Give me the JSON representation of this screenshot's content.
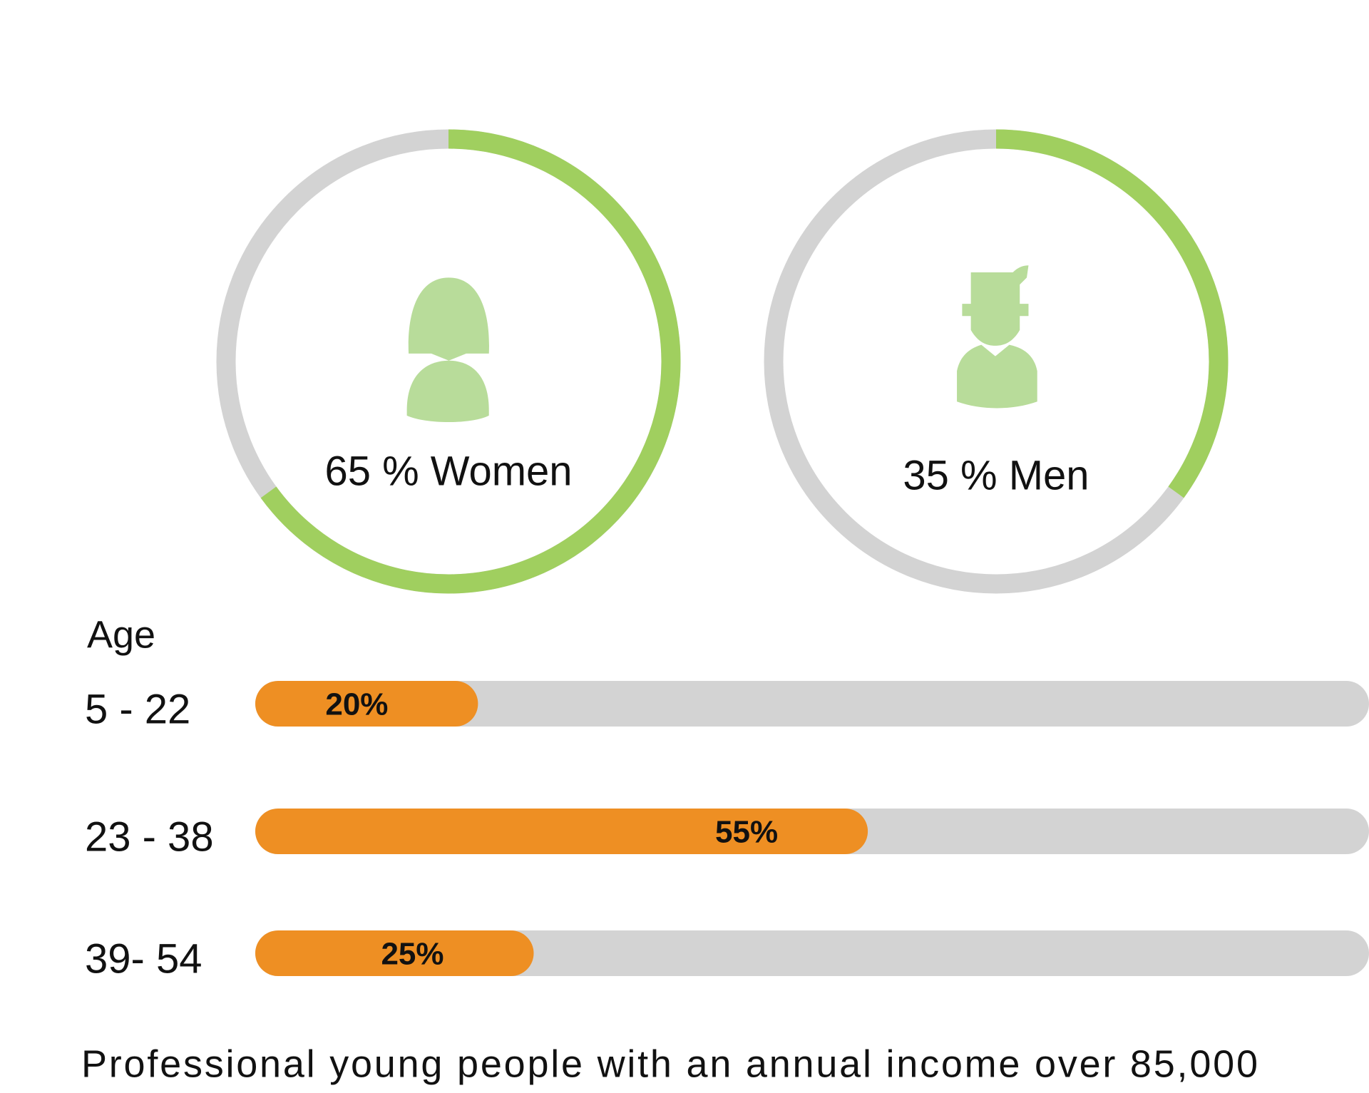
{
  "chart_data": [
    {
      "type": "donut",
      "values": [
        65,
        35
      ],
      "value_labels": [
        "65 % Women",
        "35 % Men"
      ],
      "ylim": [
        0,
        100
      ],
      "color": "#a0cf5f",
      "track_color": "#d3d3d3"
    },
    {
      "type": "bar",
      "title": "Age",
      "categories": [
        "5 - 22",
        "23 - 38",
        "39- 54"
      ],
      "values": [
        20,
        55,
        25
      ],
      "value_labels": [
        "20%",
        "55%",
        "25%"
      ],
      "xlim": [
        0,
        100
      ],
      "color": "#ee8f23",
      "track_color": "#d3d3d3"
    }
  ],
  "caption": "Professional young people with an annual income over 85,000"
}
